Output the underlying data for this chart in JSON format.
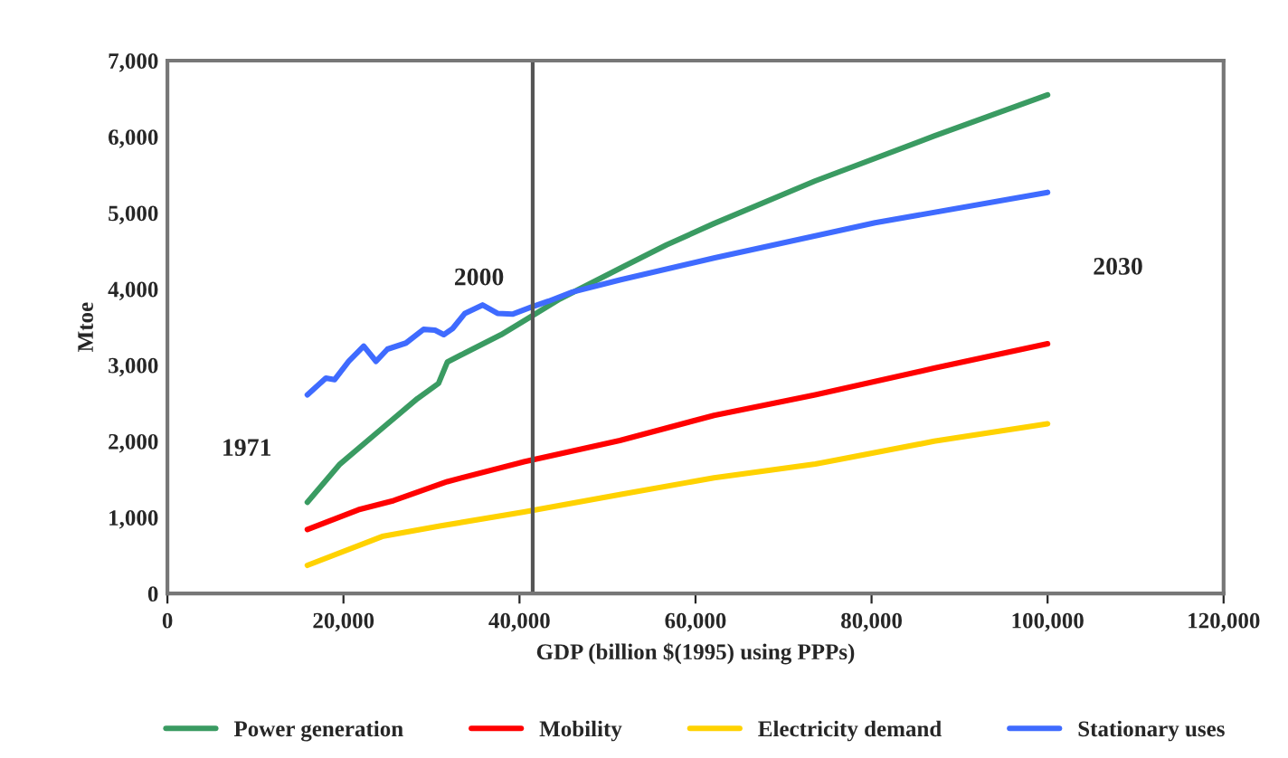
{
  "chart_data": {
    "type": "line",
    "xlabel": "GDP (billion $(1995) using PPPs)",
    "ylabel": "Mtoe",
    "xlim": [
      0,
      120000
    ],
    "ylim": [
      0,
      7000
    ],
    "xticks": [
      0,
      {
        "value": 20000,
        "label": "20,000"
      },
      {
        "value": 40000,
        "label": "40,000"
      },
      {
        "value": 60000,
        "label": "60,000"
      },
      {
        "value": 80000,
        "label": "80,000"
      },
      {
        "value": 100000,
        "label": "100,000"
      },
      {
        "value": 120000,
        "label": "120,000"
      }
    ],
    "yticks": [
      0,
      {
        "value": 1000,
        "label": "1,000"
      },
      {
        "value": 2000,
        "label": "2,000"
      },
      {
        "value": 3000,
        "label": "3,000"
      },
      {
        "value": 4000,
        "label": "4,000"
      },
      {
        "value": 5000,
        "label": "5,000"
      },
      {
        "value": 6000,
        "label": "6,000"
      },
      {
        "value": 7000,
        "label": "7,000"
      }
    ],
    "grid": false,
    "legend": "bottom",
    "marker": "none",
    "line_style": "solid",
    "series": [
      {
        "name": "Power generation",
        "color": "#3a9b62",
        "x": [
          15900,
          19600,
          24400,
          28400,
          30800,
          31800,
          33800,
          37900,
          41200,
          44600,
          51400,
          56700,
          62100,
          73600,
          87100,
          100000
        ],
        "values": [
          1200,
          1700,
          2170,
          2560,
          2760,
          3040,
          3160,
          3400,
          3630,
          3870,
          4270,
          4580,
          4860,
          5420,
          6010,
          6550
        ]
      },
      {
        "name": "Mobility",
        "color": "#ff0000",
        "x": [
          15900,
          21700,
          25700,
          31800,
          40500,
          51400,
          62100,
          73600,
          87100,
          100000
        ],
        "values": [
          840,
          1100,
          1220,
          1470,
          1730,
          2010,
          2340,
          2610,
          2960,
          3280
        ]
      },
      {
        "name": "Electricity demand",
        "color": "#ffd200",
        "x": [
          15900,
          24400,
          31100,
          40500,
          51400,
          62100,
          73600,
          87100,
          100000
        ],
        "values": [
          370,
          750,
          890,
          1070,
          1300,
          1520,
          1700,
          2000,
          2230
        ]
      },
      {
        "name": "Stationary uses",
        "color": "#3f6bff",
        "x": [
          15900,
          18000,
          19000,
          20600,
          22300,
          23700,
          25000,
          27100,
          29100,
          30400,
          31400,
          32400,
          33800,
          35800,
          37500,
          39200,
          41300,
          43300,
          46000,
          51400,
          62200,
          80400,
          100000
        ],
        "values": [
          2610,
          2830,
          2810,
          3050,
          3250,
          3050,
          3210,
          3290,
          3470,
          3460,
          3400,
          3480,
          3680,
          3790,
          3680,
          3670,
          3760,
          3840,
          3960,
          4120,
          4410,
          4870,
          5270
        ]
      }
    ],
    "ref_lines": [
      {
        "axis": "x",
        "value": 41500,
        "color": "#555555"
      }
    ],
    "annotations": [
      "1971",
      "2000",
      "2030"
    ]
  }
}
